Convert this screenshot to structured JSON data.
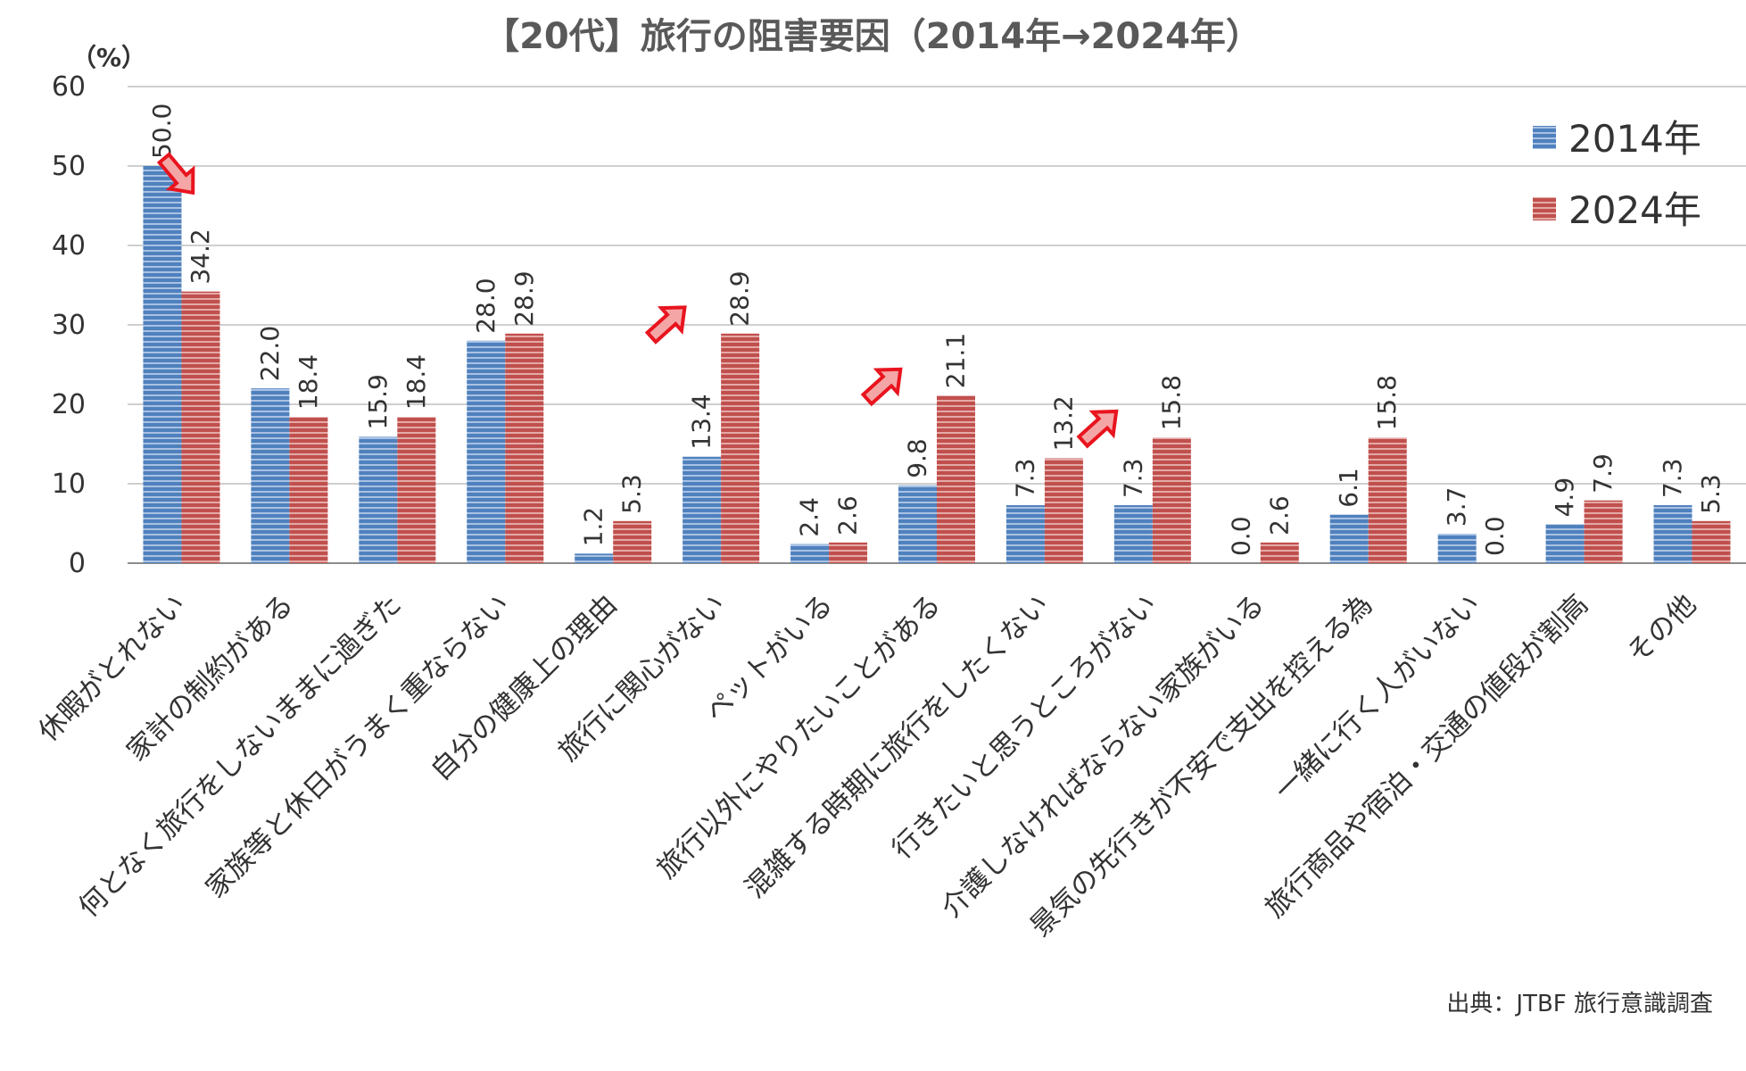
{
  "chart_data": {
    "type": "bar",
    "title": "【20代】旅行の阻害要因（2014年→2024年）",
    "y_unit": "（%）",
    "ylim": [
      0,
      60
    ],
    "yticks": [
      0,
      10,
      20,
      30,
      40,
      50,
      60
    ],
    "grid": true,
    "legend_position": "top-right",
    "categories": [
      "休暇がとれない",
      "家計の制約がある",
      "何となく旅行をしないままに過ぎた",
      "家族等と休日がうまく重ならない",
      "自分の健康上の理由",
      "旅行に関心がない",
      "ペットがいる",
      "旅行以外にやりたいことがある",
      "混雑する時期に旅行をしたくない",
      "行きたいと思うところがない",
      "介護しなければならない家族がいる",
      "景気の先行きが不安で支出を控える為",
      "一緒に行く人がいない",
      "旅行商品や宿泊・交通の値段が割高",
      "その他"
    ],
    "series": [
      {
        "name": "2014年",
        "color": "#4f81bd",
        "values": [
          50.0,
          22.0,
          15.9,
          28.0,
          1.2,
          13.4,
          2.4,
          9.8,
          7.3,
          7.3,
          0.0,
          6.1,
          3.7,
          4.9,
          7.3
        ],
        "labels": [
          "50.0",
          "22.0",
          "15.9",
          "28.0",
          "1.2",
          "13.4",
          "2.4",
          "9.8",
          "7.3",
          "7.3",
          "0.0",
          "6.1",
          "3.7",
          "4.9",
          "7.3"
        ]
      },
      {
        "name": "2024年",
        "color": "#c0504d",
        "values": [
          34.2,
          18.4,
          18.4,
          28.9,
          5.3,
          28.9,
          2.6,
          21.1,
          13.2,
          15.8,
          2.6,
          15.8,
          0.0,
          7.9,
          5.3
        ],
        "labels": [
          "34.2",
          "18.4",
          "18.4",
          "28.9",
          "5.3",
          "28.9",
          "2.6",
          "21.1",
          "13.2",
          "15.8",
          "2.6",
          "15.8",
          "0.0",
          "7.9",
          "5.3"
        ]
      }
    ],
    "annotations": [
      {
        "type": "arrow-down",
        "category_index": 0,
        "color": "#e8141e"
      },
      {
        "type": "arrow-up",
        "category_index": 5,
        "color": "#e8141e"
      },
      {
        "type": "arrow-up",
        "category_index": 7,
        "color": "#e8141e"
      },
      {
        "type": "arrow-up",
        "category_index": 9,
        "color": "#e8141e"
      }
    ],
    "source": "出典：JTBF 旅行意識調査"
  }
}
